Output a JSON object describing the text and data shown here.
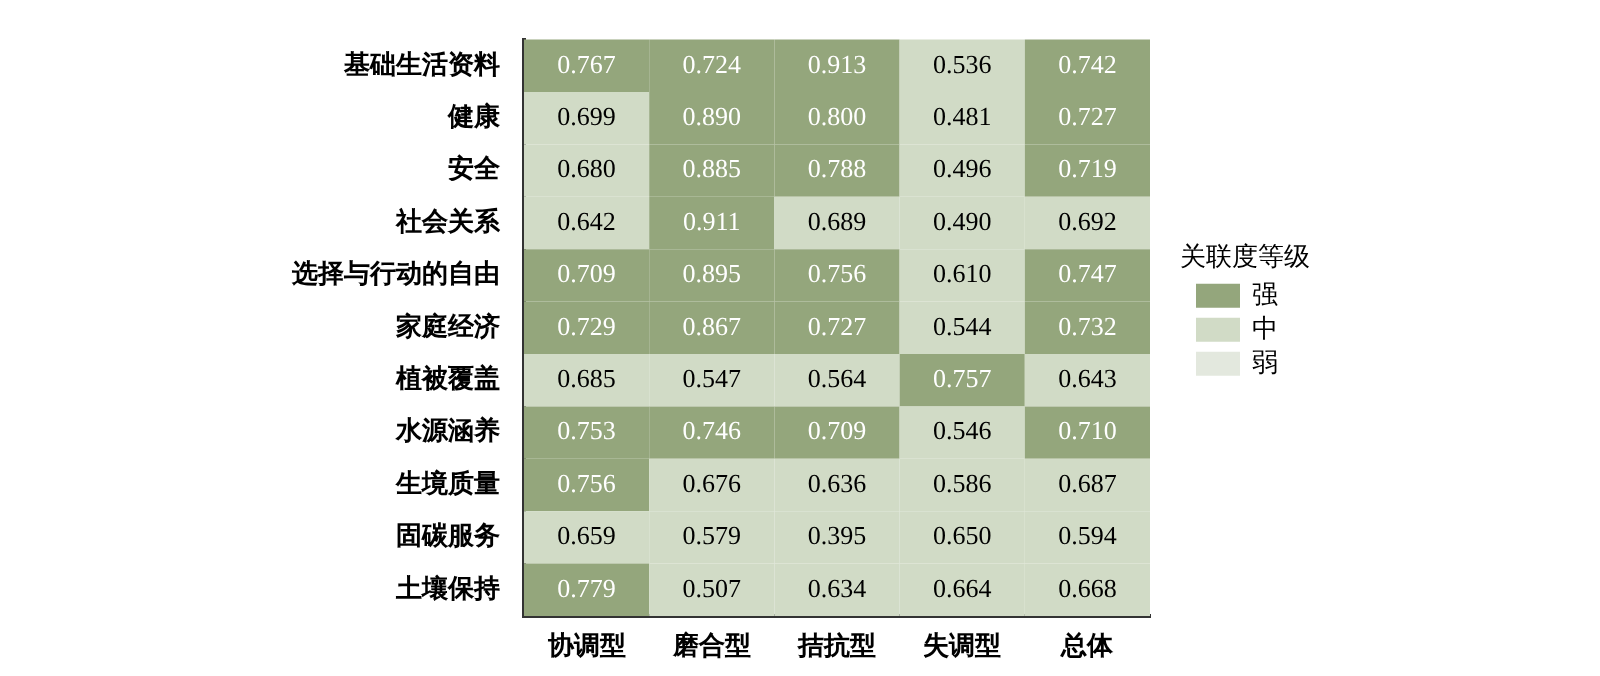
{
  "chart_data": {
    "type": "heatmap",
    "legend_title": "关联度等级",
    "legend": "right",
    "data_labels": true,
    "categories": [
      "协调型",
      "磨合型",
      "拮抗型",
      "失调型",
      "总体"
    ],
    "y_categories": [
      "基础生活资料",
      "健康",
      "安全",
      "社会关系",
      "选择与行动的自由",
      "家庭经济",
      "植被覆盖",
      "水源涵养",
      "生境质量",
      "固碳服务",
      "土壤保持"
    ],
    "cells": [
      [
        0.767,
        0.724,
        0.913,
        0.536,
        0.742
      ],
      [
        0.699,
        0.89,
        0.8,
        0.481,
        0.727
      ],
      [
        0.68,
        0.885,
        0.788,
        0.496,
        0.719
      ],
      [
        0.642,
        0.911,
        0.689,
        0.49,
        0.692
      ],
      [
        0.709,
        0.895,
        0.756,
        0.61,
        0.747
      ],
      [
        0.729,
        0.867,
        0.727,
        0.544,
        0.732
      ],
      [
        0.685,
        0.547,
        0.564,
        0.757,
        0.643
      ],
      [
        0.753,
        0.746,
        0.709,
        0.546,
        0.71
      ],
      [
        0.756,
        0.676,
        0.636,
        0.586,
        0.687
      ],
      [
        0.659,
        0.579,
        0.395,
        0.65,
        0.594
      ],
      [
        0.779,
        0.507,
        0.634,
        0.664,
        0.668
      ]
    ],
    "cell_labels": [
      [
        "0.767",
        "0.724",
        "0.913",
        "0.536",
        "0.742"
      ],
      [
        "0.699",
        "0.890",
        "0.800",
        "0.481",
        "0.727"
      ],
      [
        "0.680",
        "0.885",
        "0.788",
        "0.496",
        "0.719"
      ],
      [
        "0.642",
        "0.911",
        "0.689",
        "0.490",
        "0.692"
      ],
      [
        "0.709",
        "0.895",
        "0.756",
        "0.610",
        "0.747"
      ],
      [
        "0.729",
        "0.867",
        "0.727",
        "0.544",
        "0.732"
      ],
      [
        "0.685",
        "0.547",
        "0.564",
        "0.757",
        "0.643"
      ],
      [
        "0.753",
        "0.746",
        "0.709",
        "0.546",
        "0.710"
      ],
      [
        "0.756",
        "0.676",
        "0.636",
        "0.586",
        "0.687"
      ],
      [
        "0.659",
        "0.579",
        "0.395",
        "0.650",
        "0.594"
      ],
      [
        "0.779",
        "0.507",
        "0.634",
        "0.664",
        "0.668"
      ]
    ],
    "colors": [
      [
        "#94a67c",
        "#94a67c",
        "#94a67c",
        "#d1dbc6",
        "#94a67c"
      ],
      [
        "#d1dbc6",
        "#94a67c",
        "#94a67c",
        "#d1dbc6",
        "#94a67c"
      ],
      [
        "#d1dbc6",
        "#94a67c",
        "#94a67c",
        "#d1dbc6",
        "#94a67c"
      ],
      [
        "#d1dbc6",
        "#94a67c",
        "#d1dbc6",
        "#d1dbc6",
        "#d1dbc6"
      ],
      [
        "#94a67c",
        "#94a67c",
        "#94a67c",
        "#d1dbc6",
        "#94a67c"
      ],
      [
        "#94a67c",
        "#94a67c",
        "#94a67c",
        "#d1dbc6",
        "#94a67c"
      ],
      [
        "#d1dbc6",
        "#d1dbc6",
        "#d1dbc6",
        "#94a67c",
        "#d1dbc6"
      ],
      [
        "#94a67c",
        "#94a67c",
        "#94a67c",
        "#d1dbc6",
        "#94a67c"
      ],
      [
        "#94a67c",
        "#d1dbc6",
        "#d1dbc6",
        "#d1dbc6",
        "#d1dbc6"
      ],
      [
        "#d1dbc6",
        "#d1dbc6",
        "#d1dbc6",
        "#d1dbc6",
        "#d1dbc6"
      ],
      [
        "#94a67c",
        "#d1dbc6",
        "#d1dbc6",
        "#d1dbc6",
        "#d1dbc6"
      ]
    ],
    "series": [
      {
        "name": "强",
        "color": "#94a67c",
        "values": [
          null,
          null,
          null,
          null,
          null
        ]
      },
      {
        "name": "中",
        "color": "#d1dbc6",
        "values": [
          null,
          null,
          null,
          null,
          null
        ]
      },
      {
        "name": "弱",
        "color": "#e3e8de",
        "values": [
          null,
          null,
          null,
          null,
          null
        ]
      }
    ]
  }
}
